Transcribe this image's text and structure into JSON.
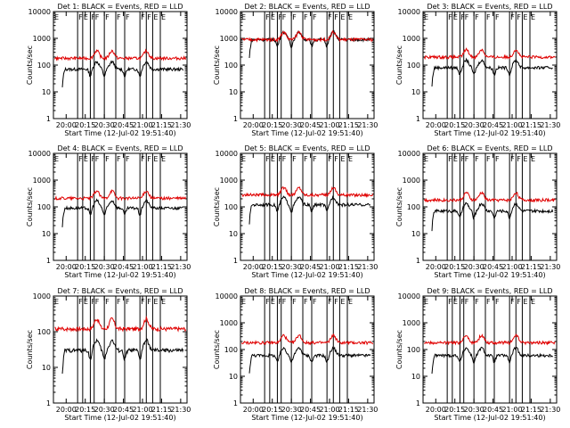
{
  "x_tick_labels": [
    "20:00",
    "20:15",
    "20:30",
    "20:45",
    "21:00",
    "21:15",
    "21:30"
  ],
  "y_tick_labels": [
    "1",
    "10",
    "100",
    "1000",
    "10000"
  ],
  "ylabel": "Counts/sec",
  "xlabel": "Start Time (12-Jul-02 19:51:40)",
  "event_marks": [
    "F",
    "F",
    "F",
    "F",
    "F",
    "F",
    "F",
    "F",
    "E",
    "E",
    "E"
  ],
  "colors": {
    "events": "#000000",
    "lld": "#e00000",
    "bg": "#ffffff"
  },
  "chart_data": [
    {
      "type": "line",
      "title": "Det 1: BLACK = Events, RED = LLD",
      "ylim": [
        1,
        10000
      ],
      "yscale": "log",
      "series": [
        {
          "name": "Events",
          "level": 70,
          "color": "#000000"
        },
        {
          "name": "LLD",
          "level": 180,
          "color": "#e00000"
        }
      ]
    },
    {
      "type": "line",
      "title": "Det 2: BLACK = Events, RED = LLD",
      "ylim": [
        1,
        10000
      ],
      "yscale": "log",
      "series": [
        {
          "name": "Events",
          "level": 900,
          "color": "#000000"
        },
        {
          "name": "LLD",
          "level": 900,
          "color": "#e00000"
        }
      ]
    },
    {
      "type": "line",
      "title": "Det 3: BLACK = Events, RED = LLD",
      "ylim": [
        1,
        10000
      ],
      "yscale": "log",
      "series": [
        {
          "name": "Events",
          "level": 80,
          "color": "#000000"
        },
        {
          "name": "LLD",
          "level": 200,
          "color": "#e00000"
        }
      ]
    },
    {
      "type": "line",
      "title": "Det 4: BLACK = Events, RED = LLD",
      "ylim": [
        1,
        10000
      ],
      "yscale": "log",
      "series": [
        {
          "name": "Events",
          "level": 90,
          "color": "#000000"
        },
        {
          "name": "LLD",
          "level": 210,
          "color": "#e00000"
        }
      ]
    },
    {
      "type": "line",
      "title": "Det 5: BLACK = Events, RED = LLD",
      "ylim": [
        1,
        10000
      ],
      "yscale": "log",
      "series": [
        {
          "name": "Events",
          "level": 120,
          "color": "#000000"
        },
        {
          "name": "LLD",
          "level": 280,
          "color": "#e00000"
        }
      ]
    },
    {
      "type": "line",
      "title": "Det 6: BLACK = Events, RED = LLD",
      "ylim": [
        1,
        10000
      ],
      "yscale": "log",
      "series": [
        {
          "name": "Events",
          "level": 70,
          "color": "#000000"
        },
        {
          "name": "LLD",
          "level": 180,
          "color": "#e00000"
        }
      ]
    },
    {
      "type": "line",
      "title": "Det 7: BLACK = Events, RED = LLD",
      "ylim": [
        1,
        1000
      ],
      "yscale": "log",
      "series": [
        {
          "name": "Events",
          "level": 30,
          "color": "#000000"
        },
        {
          "name": "LLD",
          "level": 120,
          "color": "#e00000"
        }
      ]
    },
    {
      "type": "line",
      "title": "Det 8: BLACK = Events, RED = LLD",
      "ylim": [
        1,
        10000
      ],
      "yscale": "log",
      "series": [
        {
          "name": "Events",
          "level": 60,
          "color": "#000000"
        },
        {
          "name": "LLD",
          "level": 180,
          "color": "#e00000"
        }
      ]
    },
    {
      "type": "line",
      "title": "Det 9: BLACK = Events, RED = LLD",
      "ylim": [
        1,
        10000
      ],
      "yscale": "log",
      "series": [
        {
          "name": "Events",
          "level": 60,
          "color": "#000000"
        },
        {
          "name": "LLD",
          "level": 180,
          "color": "#e00000"
        }
      ]
    }
  ]
}
